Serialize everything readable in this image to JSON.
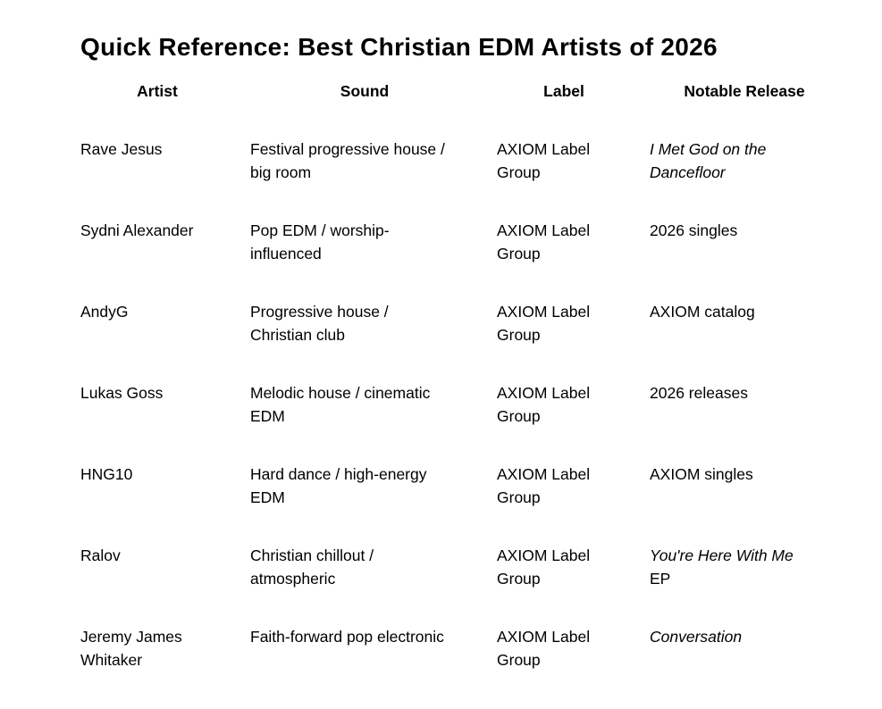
{
  "document": {
    "title": "Quick Reference: Best Christian EDM Artists of 2026"
  },
  "table": {
    "headers": [
      "Artist",
      "Sound",
      "Label",
      "Notable Release"
    ],
    "rows": [
      {
        "artist": "Rave Jesus",
        "sound": "Festival progressive house /\nbig room",
        "label": "AXIOM Label\nGroup",
        "release_italic": "I Met God on the\nDancefloor",
        "release_regular": ""
      },
      {
        "artist": "Sydni Alexander",
        "sound": "Pop EDM / worship-\ninfluenced",
        "label": "AXIOM Label\nGroup",
        "release_italic": "",
        "release_regular": "2026 singles"
      },
      {
        "artist": "AndyG",
        "sound": "Progressive house /\nChristian club",
        "label": "AXIOM Label\nGroup",
        "release_italic": "",
        "release_regular": "AXIOM catalog"
      },
      {
        "artist": "Lukas Goss",
        "sound": "Melodic house / cinematic\nEDM",
        "label": "AXIOM Label\nGroup",
        "release_italic": "",
        "release_regular": "2026 releases"
      },
      {
        "artist": "HNG10",
        "sound": "Hard dance / high-energy\nEDM",
        "label": "AXIOM Label\nGroup",
        "release_italic": "",
        "release_regular": "AXIOM singles"
      },
      {
        "artist": "Ralov",
        "sound": "Christian chillout /\natmospheric",
        "label": "AXIOM Label\nGroup",
        "release_italic": "You're Here With Me",
        "release_regular": "\nEP"
      },
      {
        "artist": "Jeremy James\nWhitaker",
        "sound": "Faith-forward pop electronic",
        "label": "AXIOM Label\nGroup",
        "release_italic": "Conversation",
        "release_regular": ""
      }
    ]
  }
}
